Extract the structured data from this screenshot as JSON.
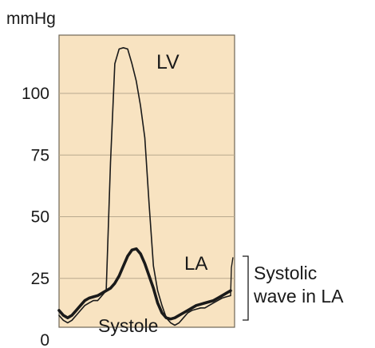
{
  "chart_data": {
    "type": "line",
    "unit_label": "mmHg",
    "yticks": [
      0,
      25,
      50,
      75,
      100
    ],
    "ylim": [
      0,
      120
    ],
    "grid": true,
    "colors": {
      "panel": "#f8e3c1",
      "grid": "#b9a98e",
      "border": "#6f6656",
      "trace": "#1a1a1a"
    },
    "series": [
      {
        "name": "LV",
        "x": [
          0,
          0.5,
          1,
          1.5,
          2,
          2.5,
          3,
          3.5,
          4,
          4.5,
          5,
          5.5,
          6,
          6.5,
          7,
          7.5,
          8,
          8.5,
          9,
          9.5,
          10,
          10.5,
          11,
          11.5,
          12,
          12.5,
          13,
          13.5,
          14,
          14.5,
          15,
          15.5,
          16,
          16.5,
          17,
          17.5,
          18,
          18.5,
          19,
          19.5,
          20
        ],
        "values": [
          10,
          8,
          7,
          8,
          10,
          12,
          14,
          15,
          16,
          16,
          18,
          20,
          72,
          112,
          118,
          118.5,
          118,
          112,
          105,
          95,
          82,
          55,
          30,
          20,
          14,
          9,
          7,
          6,
          7,
          9,
          11,
          12,
          12.5,
          13,
          13,
          14,
          15,
          16,
          17,
          17.5,
          18
        ]
      },
      {
        "name": "LA",
        "x": [
          0,
          0.5,
          1,
          1.5,
          2,
          2.5,
          3,
          3.5,
          4,
          4.5,
          5,
          5.5,
          6,
          6.5,
          7,
          7.5,
          8,
          8.5,
          9,
          9.5,
          10,
          10.5,
          11,
          11.5,
          12,
          12.5,
          13,
          13.5,
          14,
          14.5,
          15,
          15.5,
          16,
          16.5,
          17,
          17.5,
          18,
          18.5,
          19,
          19.5,
          20
        ],
        "values": [
          12,
          10,
          9,
          10,
          12,
          14,
          16,
          17,
          17.5,
          18,
          19,
          20,
          21,
          23,
          26,
          30,
          34,
          36.5,
          37,
          35,
          31,
          26,
          21,
          15,
          11,
          9,
          8.5,
          9,
          10,
          11,
          12,
          13,
          14,
          14.5,
          15,
          15.5,
          16,
          17,
          18,
          19,
          20
        ]
      }
    ],
    "annotations": [
      {
        "text": "LV",
        "series": "LV"
      },
      {
        "text": "LA",
        "series": "LA"
      },
      {
        "text": "Systole"
      },
      {
        "text": "Systolic wave in LA",
        "lines": [
          "Systolic",
          "wave in LA"
        ]
      }
    ]
  }
}
